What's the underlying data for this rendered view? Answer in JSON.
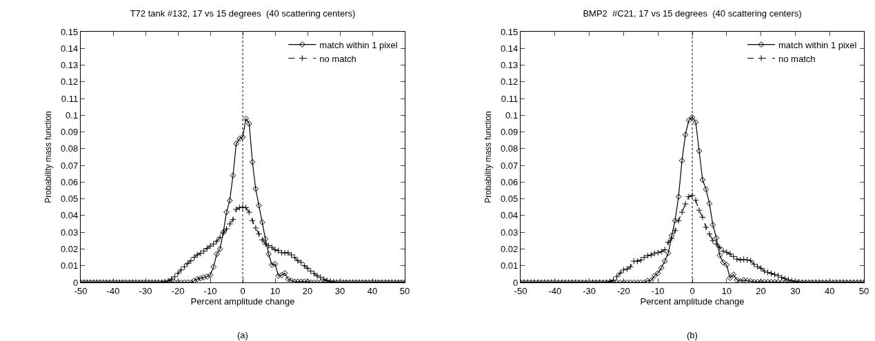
{
  "chart_data": [
    {
      "type": "line",
      "title": "T72 tank #132, 17 vs 15 degrees  (40 scattering centers)",
      "xlabel": "Percent amplitude change",
      "ylabel": "Probability mass function",
      "annotations": [
        "(a)"
      ],
      "x": [
        -50,
        -49,
        -48,
        -47,
        -46,
        -45,
        -44,
        -43,
        -42,
        -41,
        -40,
        -39,
        -38,
        -37,
        -36,
        -35,
        -34,
        -33,
        -32,
        -31,
        -30,
        -29,
        -28,
        -27,
        -26,
        -25,
        -24,
        -23,
        -22,
        -21,
        -20,
        -19,
        -18,
        -17,
        -16,
        -15,
        -14,
        -13,
        -12,
        -11,
        -10,
        -9,
        -8,
        -7,
        -6,
        -5,
        -4,
        -3,
        -2,
        -1,
        0,
        1,
        2,
        3,
        4,
        5,
        6,
        7,
        8,
        9,
        10,
        11,
        12,
        13,
        14,
        15,
        16,
        17,
        18,
        19,
        20,
        21,
        22,
        23,
        24,
        25,
        26,
        27,
        28,
        29,
        30,
        31,
        32,
        33,
        34,
        35,
        36,
        37,
        38,
        39,
        40,
        41,
        42,
        43,
        44,
        45,
        46,
        47,
        48,
        49,
        50
      ],
      "series": [
        {
          "name": "match within 1 pixel",
          "color": "#000000",
          "marker": "diamond",
          "line_style": "solid",
          "values": [
            0,
            0,
            0,
            0,
            0,
            0,
            0,
            0,
            0,
            0,
            0,
            0,
            0,
            0,
            0,
            0,
            0,
            0,
            0,
            0,
            0,
            0,
            0,
            0,
            0,
            0,
            0,
            0,
            0,
            0,
            0,
            0,
            0,
            0,
            0,
            0.001,
            0.002,
            0.0025,
            0.003,
            0.0035,
            0.0044,
            0.0094,
            0.017,
            0.02,
            0.03,
            0.042,
            0.049,
            0.064,
            0.083,
            0.086,
            0.087,
            0.098,
            0.095,
            0.072,
            0.056,
            0.046,
            0.036,
            0.026,
            0.017,
            0.0105,
            0.011,
            0.004,
            0.0043,
            0.0056,
            0.002,
            0.001,
            0.0005,
            0.0005,
            0.0005,
            0.0005,
            0.0005,
            0,
            0,
            0,
            0,
            0,
            0,
            0,
            0,
            0,
            0,
            0,
            0,
            0,
            0,
            0,
            0,
            0,
            0,
            0,
            0,
            0,
            0,
            0,
            0,
            0,
            0,
            0,
            0,
            0,
            0
          ]
        },
        {
          "name": "no match",
          "color": "#000000",
          "marker": "cross",
          "line_style": "dashed",
          "values": [
            0,
            0,
            0,
            0,
            0,
            0,
            0,
            0,
            0,
            0,
            0,
            0,
            0,
            0,
            0,
            0,
            0,
            0,
            0,
            0,
            0,
            0,
            0,
            0,
            0,
            0,
            0.0005,
            0.001,
            0.002,
            0.0034,
            0.0054,
            0.0075,
            0.0094,
            0.0114,
            0.013,
            0.015,
            0.0165,
            0.0175,
            0.0188,
            0.0204,
            0.0218,
            0.023,
            0.0247,
            0.027,
            0.0296,
            0.032,
            0.035,
            0.0376,
            0.0437,
            0.0447,
            0.045,
            0.0447,
            0.042,
            0.037,
            0.0326,
            0.029,
            0.0255,
            0.023,
            0.022,
            0.021,
            0.0195,
            0.019,
            0.0178,
            0.0177,
            0.0177,
            0.0165,
            0.015,
            0.013,
            0.012,
            0.01,
            0.0085,
            0.0068,
            0.0054,
            0.004,
            0.003,
            0.002,
            0.0012,
            0.0007,
            0.0003,
            0,
            0,
            0,
            0,
            0,
            0,
            0,
            0,
            0,
            0,
            0,
            0,
            0,
            0,
            0,
            0,
            0,
            0,
            0,
            0,
            0,
            0
          ]
        }
      ],
      "xlim": [
        -50,
        50
      ],
      "xticks": [
        -50,
        -40,
        -30,
        -20,
        -10,
        0,
        10,
        20,
        30,
        40,
        50
      ],
      "ylim": [
        0,
        0.15
      ],
      "yticks": [
        0,
        0.01,
        0.02,
        0.03,
        0.04,
        0.05,
        0.06,
        0.07,
        0.08,
        0.09,
        0.1,
        0.11,
        0.12,
        0.13,
        0.14,
        0.15
      ],
      "ref_lines": [
        {
          "axis": "x",
          "value": 0,
          "color": "#000000",
          "line_style": "dotted"
        }
      ],
      "legend": "top right"
    },
    {
      "type": "line",
      "title": "BMP2  #C21, 17 vs 15 degrees  (40 scattering centers)",
      "xlabel": "Percent amplitude change",
      "ylabel": "Probability mass function",
      "annotations": [
        "(b)"
      ],
      "x": [
        -50,
        -49,
        -48,
        -47,
        -46,
        -45,
        -44,
        -43,
        -42,
        -41,
        -40,
        -39,
        -38,
        -37,
        -36,
        -35,
        -34,
        -33,
        -32,
        -31,
        -30,
        -29,
        -28,
        -27,
        -26,
        -25,
        -24,
        -23,
        -22,
        -21,
        -20,
        -19,
        -18,
        -17,
        -16,
        -15,
        -14,
        -13,
        -12,
        -11,
        -10,
        -9,
        -8,
        -7,
        -6,
        -5,
        -4,
        -3,
        -2,
        -1,
        0,
        1,
        2,
        3,
        4,
        5,
        6,
        7,
        8,
        9,
        10,
        11,
        12,
        13,
        14,
        15,
        16,
        17,
        18,
        19,
        20,
        21,
        22,
        23,
        24,
        25,
        26,
        27,
        28,
        29,
        30,
        31,
        32,
        33,
        34,
        35,
        36,
        37,
        38,
        39,
        40,
        41,
        42,
        43,
        44,
        45,
        46,
        47,
        48,
        49,
        50
      ],
      "series": [
        {
          "name": "match within 1 pixel",
          "color": "#000000",
          "marker": "diamond",
          "line_style": "solid",
          "values": [
            0,
            0,
            0,
            0,
            0,
            0,
            0,
            0,
            0,
            0,
            0,
            0,
            0,
            0,
            0,
            0,
            0,
            0,
            0,
            0,
            0,
            0,
            0,
            0,
            0,
            0,
            0,
            0,
            0,
            0,
            0,
            0,
            0,
            0,
            0,
            0,
            0,
            0.001,
            0.0012,
            0.004,
            0.0055,
            0.0088,
            0.0128,
            0.0175,
            0.028,
            0.037,
            0.0513,
            0.0729,
            0.0884,
            0.097,
            0.0988,
            0.0958,
            0.0787,
            0.0614,
            0.0557,
            0.0472,
            0.0344,
            0.0266,
            0.0162,
            0.012,
            0.0105,
            0.0027,
            0.0047,
            0.0015,
            0.0007,
            0.0015,
            0.001,
            0.0008,
            0.0003,
            0.0003,
            0.0003,
            0.0003,
            0.0003,
            0.0003,
            0.0003,
            0.0003,
            0,
            0,
            0,
            0,
            0,
            0,
            0,
            0,
            0,
            0,
            0,
            0,
            0,
            0,
            0,
            0,
            0,
            0,
            0,
            0,
            0,
            0,
            0,
            0,
            0
          ]
        },
        {
          "name": "no match",
          "color": "#000000",
          "marker": "cross",
          "line_style": "dashed",
          "values": [
            0,
            0,
            0,
            0,
            0,
            0,
            0,
            0,
            0,
            0,
            0,
            0,
            0,
            0,
            0,
            0,
            0,
            0,
            0,
            0,
            0,
            0,
            0,
            0,
            0,
            0,
            0.0005,
            0.0014,
            0.0034,
            0.0056,
            0.0075,
            0.008,
            0.0094,
            0.0127,
            0.0127,
            0.0133,
            0.015,
            0.016,
            0.0164,
            0.0174,
            0.0178,
            0.0184,
            0.0196,
            0.024,
            0.0263,
            0.031,
            0.037,
            0.042,
            0.047,
            0.0513,
            0.052,
            0.0492,
            0.0432,
            0.039,
            0.033,
            0.029,
            0.025,
            0.023,
            0.021,
            0.0188,
            0.018,
            0.017,
            0.0155,
            0.014,
            0.0135,
            0.0138,
            0.0135,
            0.013,
            0.0108,
            0.0095,
            0.0085,
            0.0068,
            0.006,
            0.0054,
            0.0047,
            0.004,
            0.003,
            0.0022,
            0.0016,
            0.001,
            0.0007,
            0.0003,
            0,
            0,
            0,
            0,
            0,
            0,
            0,
            0,
            0,
            0,
            0,
            0,
            0,
            0,
            0,
            0,
            0,
            0,
            0
          ]
        }
      ],
      "xlim": [
        -50,
        50
      ],
      "xticks": [
        -50,
        -40,
        -30,
        -20,
        -10,
        0,
        10,
        20,
        30,
        40,
        50
      ],
      "ylim": [
        0,
        0.15
      ],
      "yticks": [
        0,
        0.01,
        0.02,
        0.03,
        0.04,
        0.05,
        0.06,
        0.07,
        0.08,
        0.09,
        0.1,
        0.11,
        0.12,
        0.13,
        0.14,
        0.15
      ],
      "ref_lines": [
        {
          "axis": "x",
          "value": 0,
          "color": "#000000",
          "line_style": "dotted"
        }
      ],
      "legend": "top right"
    }
  ]
}
